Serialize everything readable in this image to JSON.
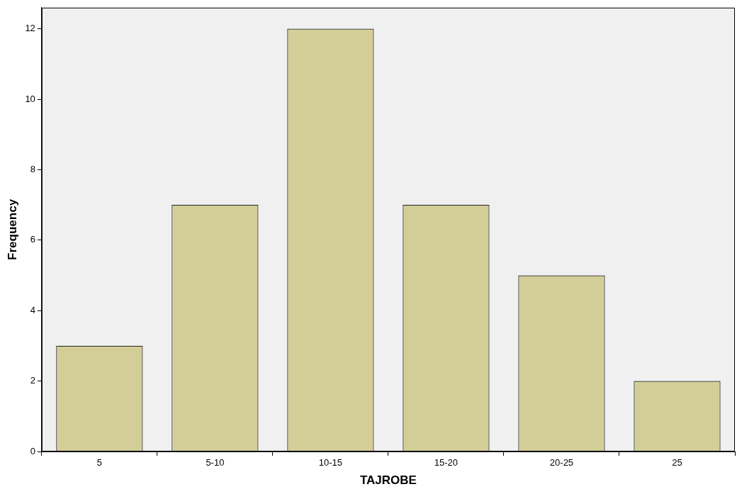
{
  "chart_data": {
    "type": "bar",
    "xlabel": "TAJROBE",
    "ylabel": "Frequency",
    "categories": [
      "5",
      "5-10",
      "10-15",
      "15-20",
      "20-25",
      "25"
    ],
    "values": [
      3,
      7,
      12,
      7,
      5,
      2
    ],
    "color": "#d3ce97",
    "ylim": [
      0,
      12.6
    ],
    "yticks": [
      0,
      2,
      4,
      6,
      8,
      10,
      12
    ],
    "grid": false
  }
}
